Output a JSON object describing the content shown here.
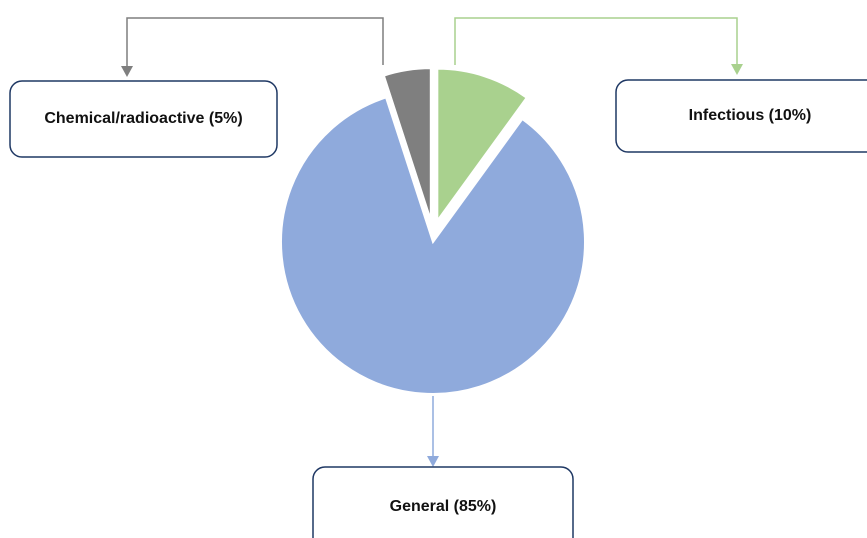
{
  "chart_data": {
    "type": "pie",
    "categories": [
      "Infectious (10%)",
      "General (85%)",
      "Chemical/radioactive (5%)"
    ],
    "values": [
      10,
      85,
      5
    ],
    "colors": [
      "#a9d18e",
      "#8faadc",
      "#7f7f7f"
    ]
  }
}
